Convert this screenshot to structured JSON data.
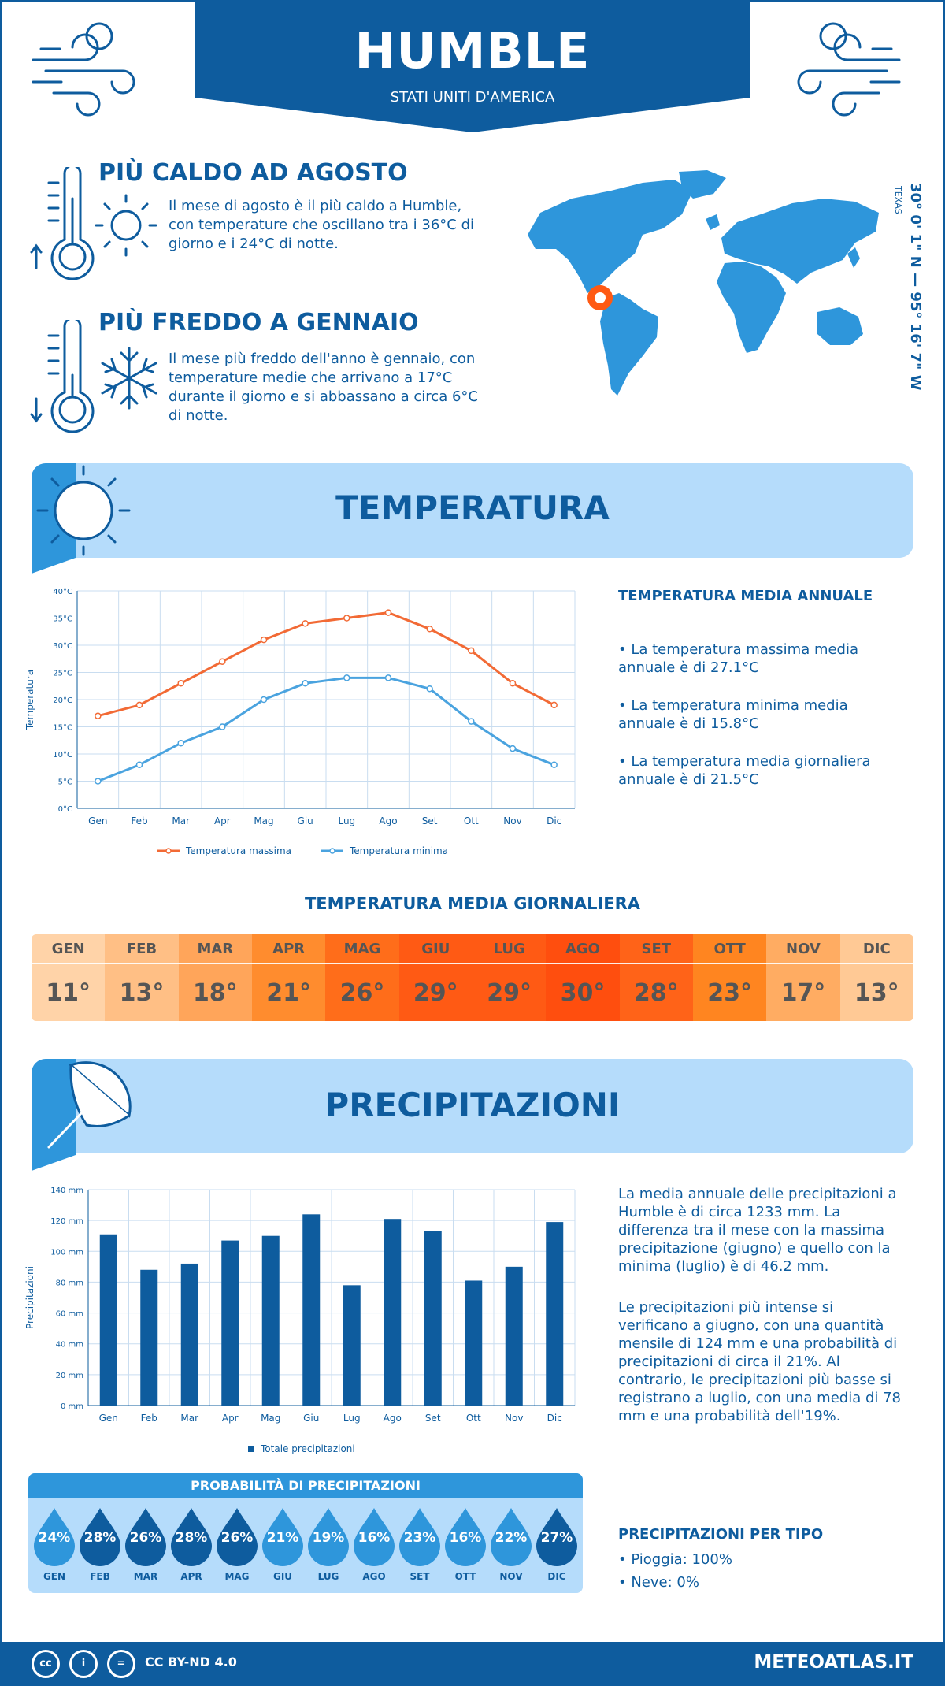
{
  "header": {
    "city": "HUMBLE",
    "country": "STATI UNITI D'AMERICA",
    "coordinates": "30° 0' 1\" N — 95° 16' 7\" W",
    "region": "TEXAS"
  },
  "hottest": {
    "title": "PIÙ CALDO AD AGOSTO",
    "text": "Il mese di agosto è il più caldo a Humble, con temperature che oscillano tra i 36°C di giorno e i 24°C di notte."
  },
  "coldest": {
    "title": "PIÙ FREDDO A GENNAIO",
    "text": "Il mese più freddo dell'anno è gennaio, con temperature medie che arrivano a 17°C durante il giorno e si abbassano a circa 6°C di notte."
  },
  "temperature_section": {
    "title": "TEMPERATURA",
    "annual_title": "TEMPERATURA MEDIA ANNUALE",
    "bullets": [
      "• La temperatura massima media annuale è di 27.1°C",
      "• La temperatura minima media annuale è di 15.8°C",
      "• La temperatura media giornaliera annuale è di 21.5°C"
    ],
    "daily_title": "TEMPERATURA MEDIA GIORNALIERA",
    "daily": [
      {
        "month": "GEN",
        "value": "11°",
        "color": "#ffd3a8"
      },
      {
        "month": "FEB",
        "value": "13°",
        "color": "#ffbf85"
      },
      {
        "month": "MAR",
        "value": "18°",
        "color": "#ffa55a"
      },
      {
        "month": "APR",
        "value": "21°",
        "color": "#ff8c2e"
      },
      {
        "month": "MAG",
        "value": "26°",
        "color": "#ff6d1a"
      },
      {
        "month": "GIU",
        "value": "29°",
        "color": "#ff5a14"
      },
      {
        "month": "LUG",
        "value": "29°",
        "color": "#ff5a14"
      },
      {
        "month": "AGO",
        "value": "30°",
        "color": "#ff4e0e"
      },
      {
        "month": "SET",
        "value": "28°",
        "color": "#ff6318"
      },
      {
        "month": "OTT",
        "value": "23°",
        "color": "#ff8520"
      },
      {
        "month": "NOV",
        "value": "17°",
        "color": "#ffac62"
      },
      {
        "month": "DIC",
        "value": "13°",
        "color": "#ffc995"
      }
    ]
  },
  "precip_section": {
    "title": "PRECIPITAZIONI",
    "text1": "La media annuale delle precipitazioni a Humble è di circa 1233 mm. La differenza tra il mese con la massima precipitazione (giugno) e quello con la minima (luglio) è di 46.2 mm.",
    "text2": "Le precipitazioni più intense si verificano a giugno, con una quantità mensile di 124 mm e una probabilità di precipitazioni di circa il 21%. Al contrario, le precipitazioni più basse si registrano a luglio, con una media di 78 mm e una probabilità dell'19%.",
    "prob_title": "PROBABILITÀ DI PRECIPITAZIONI",
    "probabilities": [
      {
        "month": "GEN",
        "value": "24%",
        "color": "#2e96db"
      },
      {
        "month": "FEB",
        "value": "28%",
        "color": "#0e5c9e"
      },
      {
        "month": "MAR",
        "value": "26%",
        "color": "#0e5c9e"
      },
      {
        "month": "APR",
        "value": "28%",
        "color": "#0e5c9e"
      },
      {
        "month": "MAG",
        "value": "26%",
        "color": "#0e5c9e"
      },
      {
        "month": "GIU",
        "value": "21%",
        "color": "#2e96db"
      },
      {
        "month": "LUG",
        "value": "19%",
        "color": "#2e96db"
      },
      {
        "month": "AGO",
        "value": "16%",
        "color": "#2e96db"
      },
      {
        "month": "SET",
        "value": "23%",
        "color": "#2e96db"
      },
      {
        "month": "OTT",
        "value": "16%",
        "color": "#2e96db"
      },
      {
        "month": "NOV",
        "value": "22%",
        "color": "#2e96db"
      },
      {
        "month": "DIC",
        "value": "27%",
        "color": "#0e5c9e"
      }
    ],
    "type_title": "PRECIPITAZIONI PER TIPO",
    "types": [
      "• Pioggia: 100%",
      "• Neve: 0%"
    ]
  },
  "footer": {
    "license": "CC BY-ND 4.0",
    "site": "METEOATLAS.IT"
  },
  "colors": {
    "primary": "#0e5c9e",
    "accent": "#2e96db",
    "band": "#b5dcfb",
    "max_line": "#f26a35",
    "min_line": "#4aa3df"
  },
  "chart_data": [
    {
      "type": "line",
      "categories": [
        "Gen",
        "Feb",
        "Mar",
        "Apr",
        "Mag",
        "Giu",
        "Lug",
        "Ago",
        "Set",
        "Ott",
        "Nov",
        "Dic"
      ],
      "series": [
        {
          "name": "Temperatura massima",
          "values": [
            17,
            19,
            23,
            27,
            31,
            34,
            35,
            36,
            33,
            29,
            23,
            19
          ]
        },
        {
          "name": "Temperatura minima",
          "values": [
            5,
            8,
            12,
            15,
            20,
            23,
            24,
            24,
            22,
            16,
            11,
            8
          ]
        }
      ],
      "ylabel": "Temperatura",
      "ylim": [
        0,
        40
      ],
      "yticks": [
        "0°C",
        "5°C",
        "10°C",
        "15°C",
        "20°C",
        "25°C",
        "30°C",
        "35°C",
        "40°C"
      ],
      "grid": true,
      "legend": "bottom"
    },
    {
      "type": "bar",
      "categories": [
        "Gen",
        "Feb",
        "Mar",
        "Apr",
        "Mag",
        "Giu",
        "Lug",
        "Ago",
        "Set",
        "Ott",
        "Nov",
        "Dic"
      ],
      "series": [
        {
          "name": "Totale precipitazioni",
          "values": [
            111,
            88,
            92,
            107,
            110,
            124,
            78,
            121,
            113,
            81,
            90,
            119
          ]
        }
      ],
      "ylabel": "Precipitazioni",
      "ylim": [
        0,
        140
      ],
      "yticks": [
        "0 mm",
        "20 mm",
        "40 mm",
        "60 mm",
        "80 mm",
        "100 mm",
        "120 mm",
        "140 mm"
      ],
      "grid": true,
      "legend": "bottom"
    }
  ]
}
